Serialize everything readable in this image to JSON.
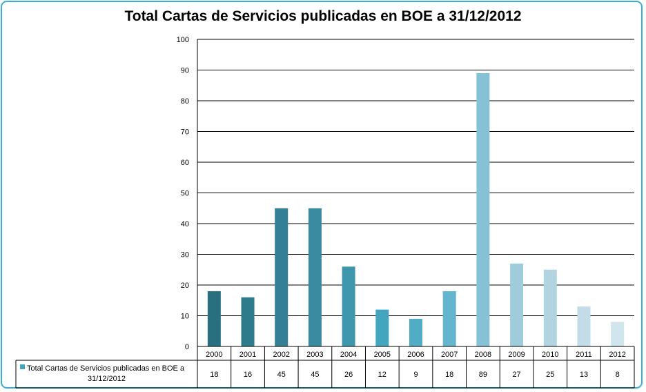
{
  "chart_data": {
    "type": "bar",
    "title": "Total Cartas de Servicios publicadas en BOE a 31/12/2012",
    "categories": [
      "2000",
      "2001",
      "2002",
      "2003",
      "2004",
      "2005",
      "2006",
      "2007",
      "2008",
      "2009",
      "2010",
      "2011",
      "2012"
    ],
    "series": [
      {
        "name": "Total Cartas de Servicios publicadas en BOE a 31/12/2012",
        "values": [
          18,
          16,
          45,
          45,
          26,
          12,
          9,
          18,
          89,
          27,
          25,
          13,
          8
        ]
      }
    ],
    "ylim": [
      0,
      100
    ],
    "yticks": [
      0,
      10,
      20,
      30,
      40,
      50,
      60,
      70,
      80,
      90,
      100
    ],
    "grid": true,
    "legend": "data-table",
    "legend_line1": "Total Cartas de Servicios publicadas en BOE a",
    "legend_line2": "31/12/2012",
    "colors": {
      "frame": "#3aaed0",
      "bars": [
        "#2a6f7f",
        "#2e7b8c",
        "#347f95",
        "#3a8aa0",
        "#3f97ad",
        "#44a5bf",
        "#51adc6",
        "#64b5cd",
        "#86c2d5",
        "#9fccdb",
        "#b2d4e1",
        "#c3dce7",
        "#d1e5ed"
      ],
      "legend_swatch": "#44a5bf"
    }
  }
}
